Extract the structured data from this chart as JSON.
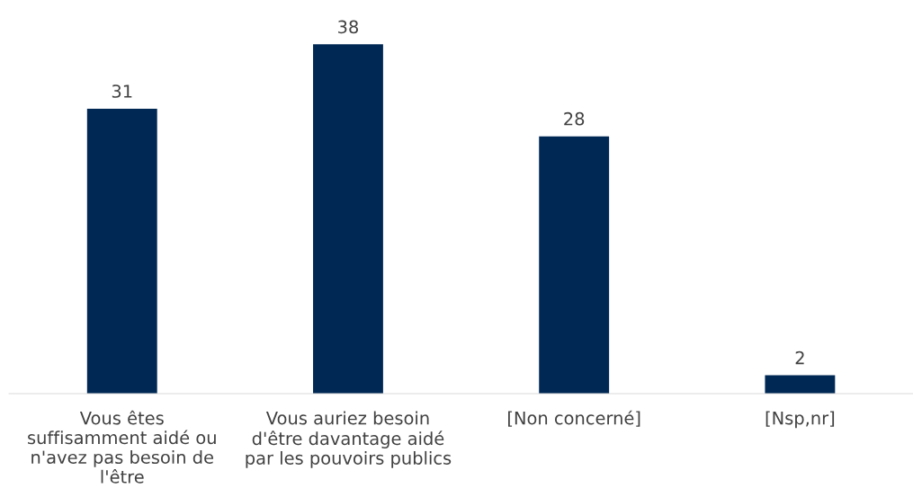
{
  "chart_data": {
    "type": "bar",
    "categories": [
      "Vous êtes\nsuffisamment aidé ou\nn'avez pas besoin de\nl'être",
      "Vous auriez besoin\nd'être davantage aidé\npar les pouvoirs publics",
      "[Non concerné]",
      "[Nsp,nr]"
    ],
    "values": [
      31,
      38,
      28,
      2
    ],
    "color": "#002855",
    "data_labels": true,
    "grid": false,
    "legend": false
  }
}
